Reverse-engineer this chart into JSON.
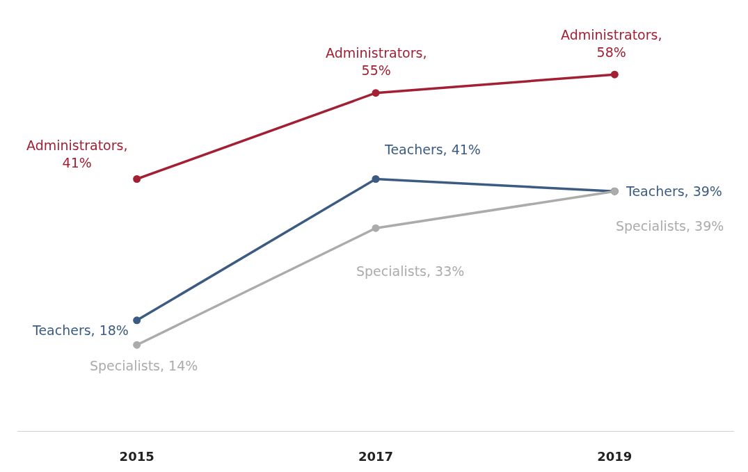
{
  "chart_data": {
    "type": "line",
    "categories": [
      "2015",
      "2017",
      "2019"
    ],
    "series": [
      {
        "color": "#a31f34",
        "values": [
          41,
          55,
          58
        ],
        "value_labels": [
          "Administrators, 41%",
          "Administrators, 55%",
          "Administrators, 58%"
        ]
      },
      {
        "color": "#3b5b82",
        "values": [
          18,
          41,
          39
        ],
        "value_labels": [
          "Teachers, 18%",
          "Teachers, 41%",
          "Teachers, 39%"
        ]
      },
      {
        "color": "#ababab",
        "values": [
          14,
          33,
          39
        ],
        "value_labels": [
          "Specialists, 14%",
          "Specialists, 33%",
          "Specialists, 39%"
        ]
      }
    ],
    "marker": "circle",
    "line_style": "solid"
  }
}
